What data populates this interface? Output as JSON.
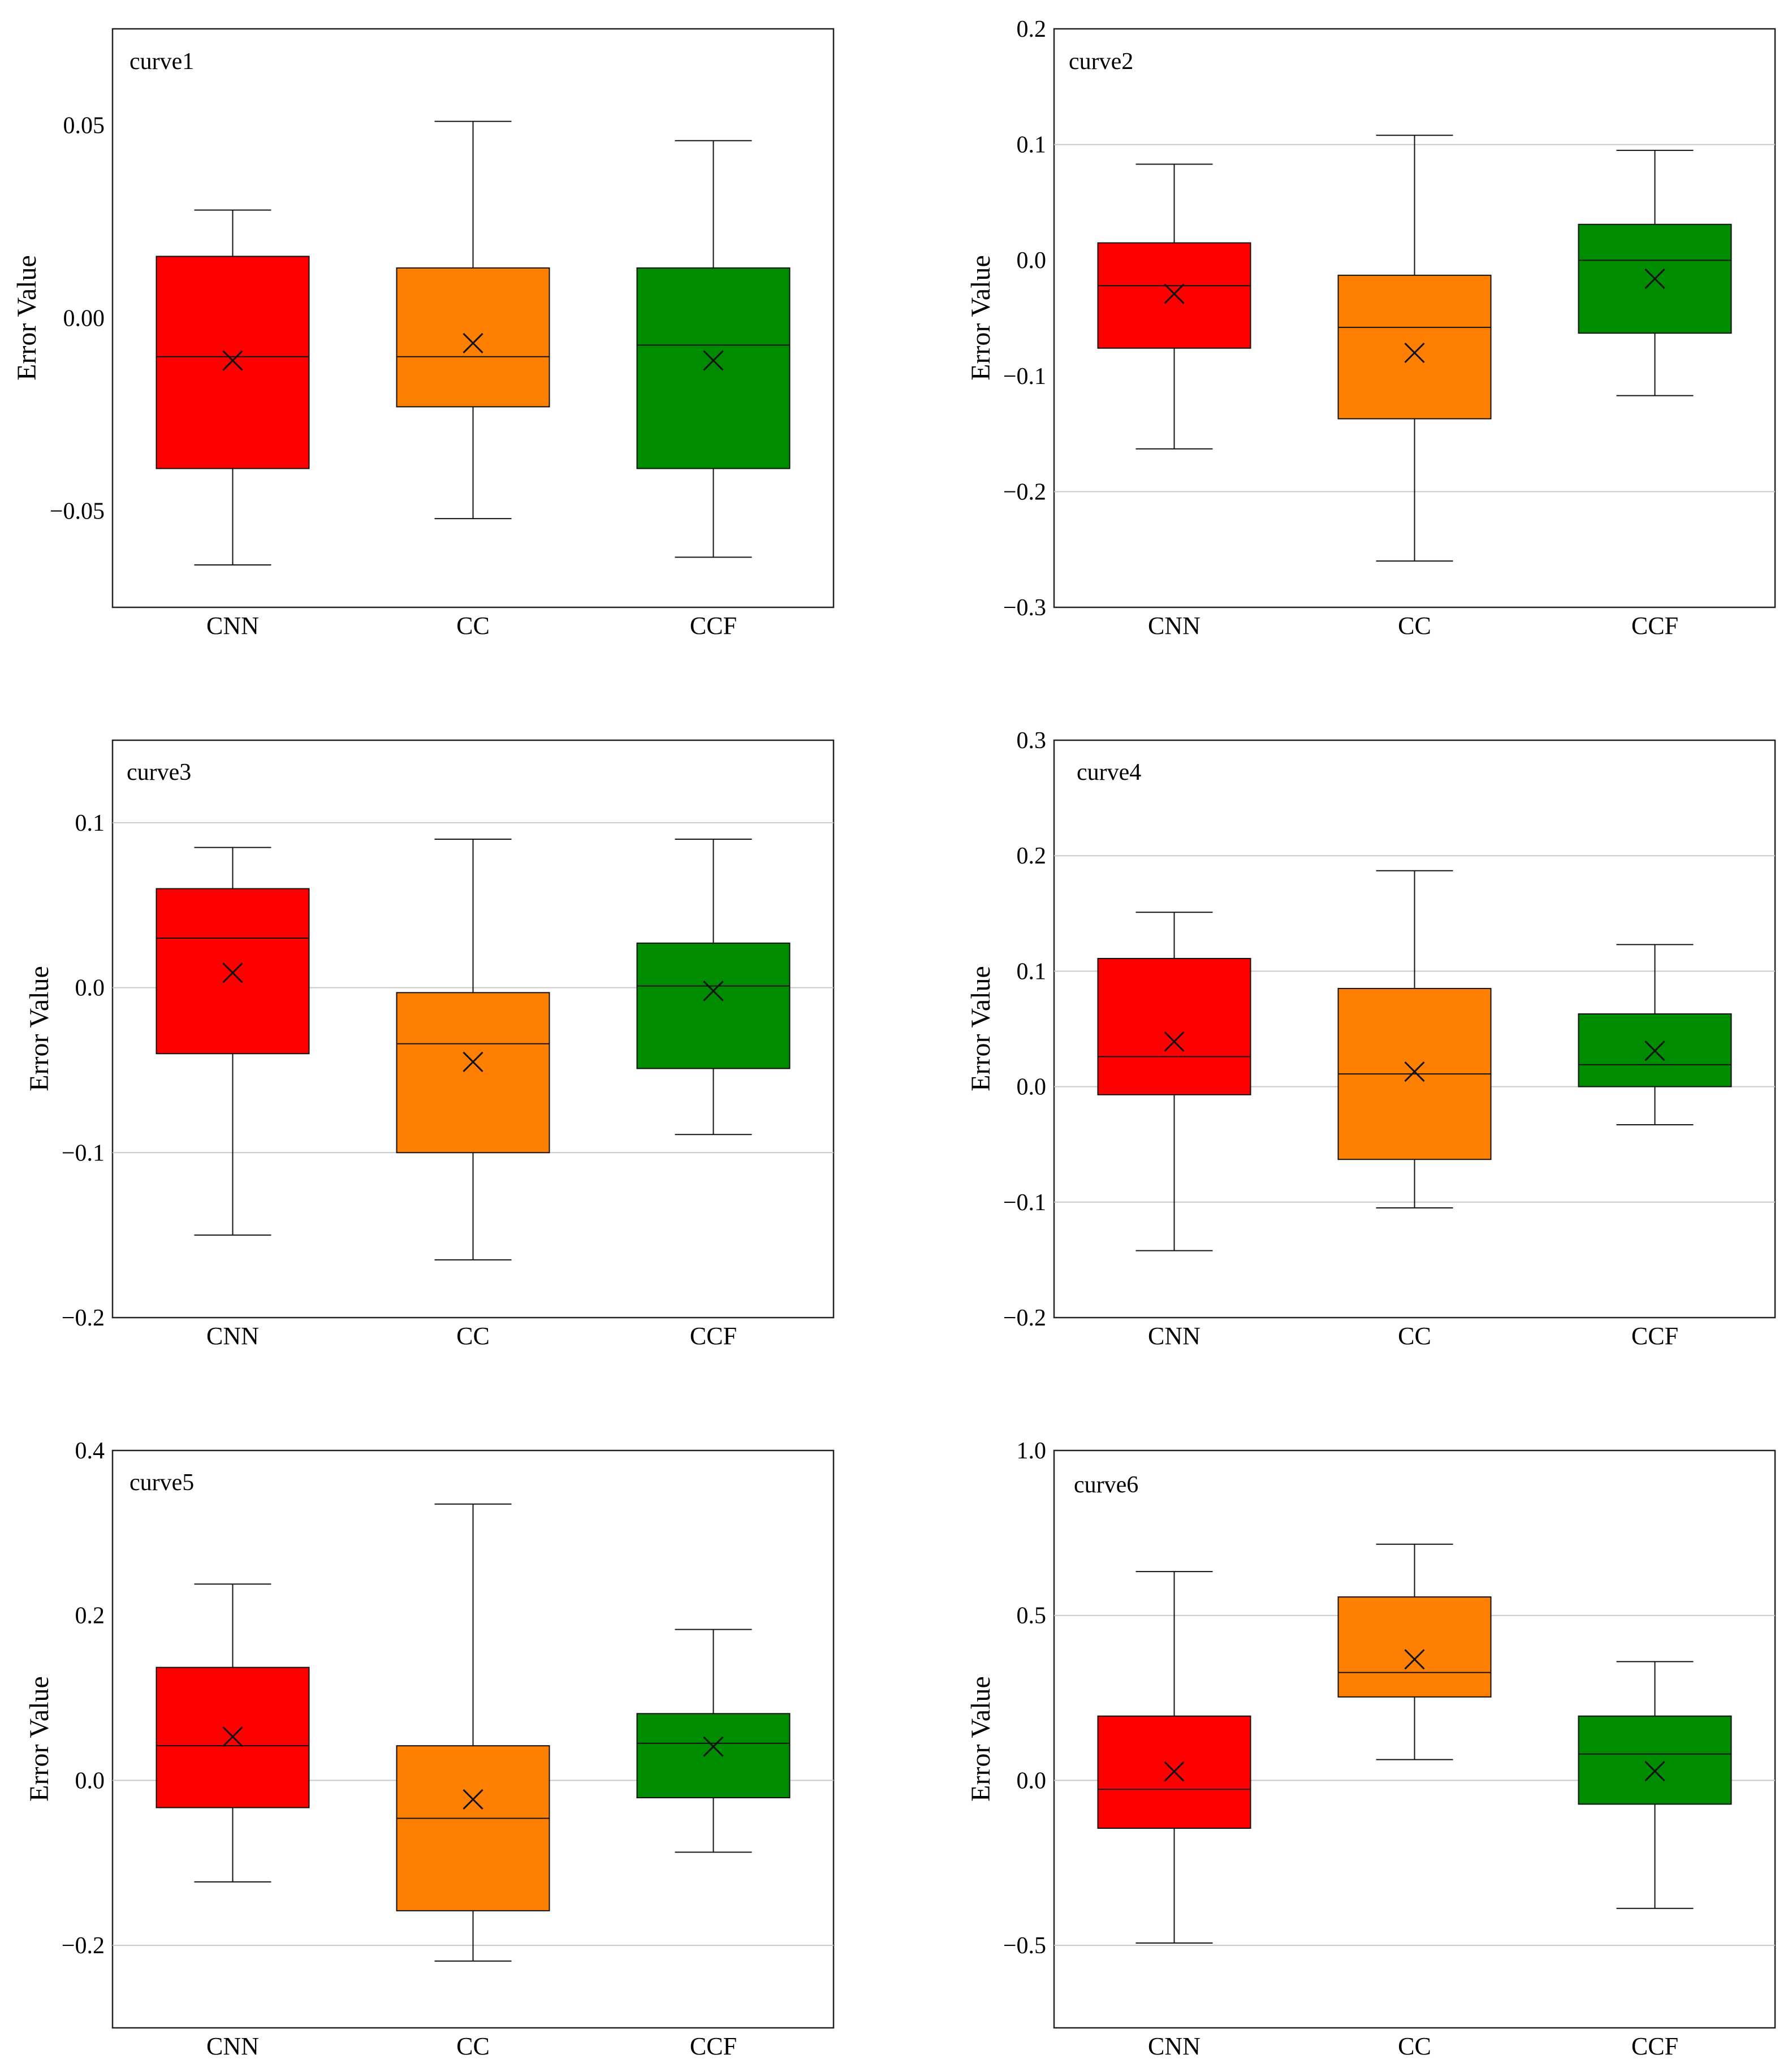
{
  "figure_kind": "box plots of error values",
  "colors": {
    "CNN": "#ff0000",
    "CC": "#ff8000",
    "CCF": "#008c00"
  },
  "chart_data": [
    {
      "type": "box",
      "title": "curve1",
      "ylabel": "Error Value",
      "ylim": [
        -0.075,
        0.075
      ],
      "yticks": [
        -0.05,
        0.0,
        0.05
      ],
      "ytick_labels": [
        "−0.05",
        "0.00",
        "0.05"
      ],
      "gridlines": [],
      "categories": [
        "CNN",
        "CC",
        "CCF"
      ],
      "boxes": [
        {
          "name": "CNN",
          "min": -0.064,
          "q1": -0.039,
          "median": -0.01,
          "q3": 0.016,
          "max": 0.028,
          "mean": -0.011
        },
        {
          "name": "CC",
          "min": -0.052,
          "q1": -0.023,
          "median": -0.01,
          "q3": 0.013,
          "max": 0.051,
          "mean": -0.0065
        },
        {
          "name": "CCF",
          "min": -0.062,
          "q1": -0.039,
          "median": -0.007,
          "q3": 0.013,
          "max": 0.046,
          "mean": -0.011
        }
      ]
    },
    {
      "type": "box",
      "title": "curve2",
      "ylabel": "Error Value",
      "ylim": [
        -0.3,
        0.2
      ],
      "yticks": [
        -0.3,
        -0.2,
        -0.1,
        0.0,
        0.1,
        0.2
      ],
      "ytick_labels": [
        "−0.3",
        "−0.2",
        "−0.1",
        "0.0",
        "0.1",
        "0.2"
      ],
      "gridlines": [
        -0.2,
        0.1
      ],
      "categories": [
        "CNN",
        "CC",
        "CCF"
      ],
      "boxes": [
        {
          "name": "CNN",
          "min": -0.163,
          "q1": -0.076,
          "median": -0.022,
          "q3": 0.015,
          "max": 0.083,
          "mean": -0.029
        },
        {
          "name": "CC",
          "min": -0.26,
          "q1": -0.137,
          "median": -0.058,
          "q3": -0.013,
          "max": 0.108,
          "mean": -0.08
        },
        {
          "name": "CCF",
          "min": -0.117,
          "q1": -0.063,
          "median": 0.0,
          "q3": 0.031,
          "max": 0.095,
          "mean": -0.016
        }
      ]
    },
    {
      "type": "box",
      "title": "curve3",
      "ylabel": "Error Value",
      "ylim": [
        -0.2,
        0.15
      ],
      "yticks": [
        -0.2,
        -0.1,
        0.0,
        0.1
      ],
      "ytick_labels": [
        "−0.2",
        "−0.1",
        "0.0",
        "0.1"
      ],
      "gridlines": [
        -0.1,
        0.0,
        0.1
      ],
      "categories": [
        "CNN",
        "CC",
        "CCF"
      ],
      "boxes": [
        {
          "name": "CNN",
          "min": -0.15,
          "q1": -0.04,
          "median": 0.03,
          "q3": 0.06,
          "max": 0.085,
          "mean": 0.009
        },
        {
          "name": "CC",
          "min": -0.165,
          "q1": -0.1,
          "median": -0.034,
          "q3": -0.003,
          "max": 0.09,
          "mean": -0.045
        },
        {
          "name": "CCF",
          "min": -0.089,
          "q1": -0.049,
          "median": 0.001,
          "q3": 0.027,
          "max": 0.09,
          "mean": -0.002
        }
      ]
    },
    {
      "type": "box",
      "title": "curve4",
      "ylabel": "Error Value",
      "ylim": [
        -0.2,
        0.3
      ],
      "yticks": [
        -0.2,
        -0.1,
        0.0,
        0.1,
        0.2,
        0.3
      ],
      "ytick_labels": [
        "−0.2",
        "−0.1",
        "0.0",
        "0.1",
        "0.2",
        "0.3"
      ],
      "gridlines": [
        -0.1,
        0.0,
        0.1,
        0.2
      ],
      "categories": [
        "CNN",
        "CC",
        "CCF"
      ],
      "boxes": [
        {
          "name": "CNN",
          "min": -0.142,
          "q1": -0.007,
          "median": 0.026,
          "q3": 0.111,
          "max": 0.151,
          "mean": 0.039
        },
        {
          "name": "CC",
          "min": -0.105,
          "q1": -0.063,
          "median": 0.011,
          "q3": 0.085,
          "max": 0.187,
          "mean": 0.013
        },
        {
          "name": "CCF",
          "min": -0.033,
          "q1": 0.0,
          "median": 0.019,
          "q3": 0.063,
          "max": 0.123,
          "mean": 0.031
        }
      ]
    },
    {
      "type": "box",
      "title": "curve5",
      "ylabel": "Error Value",
      "ylim": [
        -0.3,
        0.4
      ],
      "yticks": [
        -0.2,
        0.0,
        0.2,
        0.4
      ],
      "ytick_labels": [
        "−0.2",
        "0.0",
        "0.2",
        "0.4"
      ],
      "gridlines": [
        -0.2,
        0.0
      ],
      "categories": [
        "CNN",
        "CC",
        "CCF"
      ],
      "boxes": [
        {
          "name": "CNN",
          "min": -0.123,
          "q1": -0.033,
          "median": 0.042,
          "q3": 0.137,
          "max": 0.238,
          "mean": 0.053
        },
        {
          "name": "CC",
          "min": -0.219,
          "q1": -0.158,
          "median": -0.046,
          "q3": 0.042,
          "max": 0.335,
          "mean": -0.023
        },
        {
          "name": "CCF",
          "min": -0.087,
          "q1": -0.021,
          "median": 0.045,
          "q3": 0.081,
          "max": 0.183,
          "mean": 0.041
        }
      ]
    },
    {
      "type": "box",
      "title": "curve6",
      "ylabel": "Error Value",
      "ylim": [
        -0.75,
        1.0
      ],
      "yticks": [
        -0.5,
        0.0,
        0.5,
        1.0
      ],
      "ytick_labels": [
        "−0.5",
        "0.0",
        "0.5",
        "1.0"
      ],
      "gridlines": [
        -0.5,
        0.0,
        0.5
      ],
      "categories": [
        "CNN",
        "CC",
        "CCF"
      ],
      "boxes": [
        {
          "name": "CNN",
          "min": -0.493,
          "q1": -0.145,
          "median": -0.027,
          "q3": 0.195,
          "max": 0.633,
          "mean": 0.027
        },
        {
          "name": "CC",
          "min": 0.063,
          "q1": 0.253,
          "median": 0.327,
          "q3": 0.556,
          "max": 0.716,
          "mean": 0.367
        },
        {
          "name": "CCF",
          "min": -0.388,
          "q1": -0.072,
          "median": 0.08,
          "q3": 0.195,
          "max": 0.36,
          "mean": 0.028
        }
      ]
    }
  ]
}
